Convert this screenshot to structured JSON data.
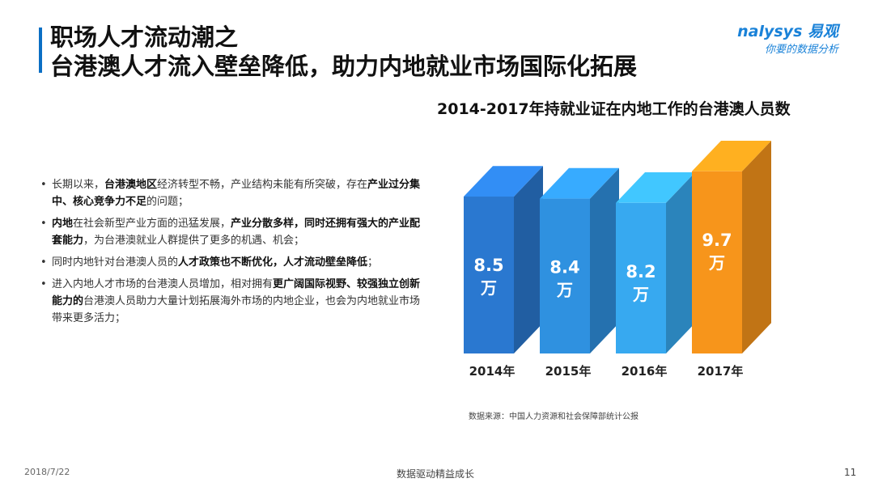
{
  "header": {
    "title_line1": "职场人才流动潮之",
    "title_line2": "台港澳人才流入壁垒降低，助力内地就业市场国际化拓展",
    "logo_main": "nalysys 易观",
    "logo_sub": "你要的数据分析"
  },
  "bullets": [
    [
      {
        "t": "长期以来，",
        "b": false
      },
      {
        "t": "台港澳地区",
        "b": true
      },
      {
        "t": "经济转型不畅，产业结构未能有所突破，存在",
        "b": false
      },
      {
        "t": "产业过分集中、核心竞争力不足",
        "b": true
      },
      {
        "t": "的问题；",
        "b": false
      }
    ],
    [
      {
        "t": "内地",
        "b": true
      },
      {
        "t": "在社会新型产业方面的迅猛发展，",
        "b": false
      },
      {
        "t": "产业分散多样，同时还拥有强大的产业配套能力",
        "b": true
      },
      {
        "t": "，为台港澳就业人群提供了更多的机遇、机会；",
        "b": false
      }
    ],
    [
      {
        "t": "同时内地针对台港澳人员的",
        "b": false
      },
      {
        "t": "人才政策也不断优化，人才流动壁垒降低",
        "b": true
      },
      {
        "t": "；",
        "b": false
      }
    ],
    [
      {
        "t": "进入内地人才市场的台港澳人员增加，相对拥有",
        "b": false
      },
      {
        "t": "更广阔国际视野、较强独立创新能力的",
        "b": true
      },
      {
        "t": "台港澳人员助力大量计划拓展海外市场的内地企业，也会为内地就业市场带来更多活力；",
        "b": false
      }
    ]
  ],
  "chart_data": {
    "type": "bar",
    "title": "2014-2017年持就业证在内地工作的台港澳人员数",
    "categories": [
      "2014年",
      "2015年",
      "2016年",
      "2017年"
    ],
    "values": [
      8.5,
      8.4,
      8.2,
      9.7
    ],
    "value_labels": [
      "8.5\n万",
      "8.4\n万",
      "8.2\n万",
      "9.7\n万"
    ],
    "colors": [
      "#2a78d0",
      "#2f91e0",
      "#37a9f0",
      "#f7951b"
    ],
    "unit": "万"
  },
  "source": "数据来源：中国人力资源和社会保障部统计公报",
  "footer": {
    "date": "2018/7/22",
    "center": "数据驱动精益成长",
    "page": "11"
  }
}
